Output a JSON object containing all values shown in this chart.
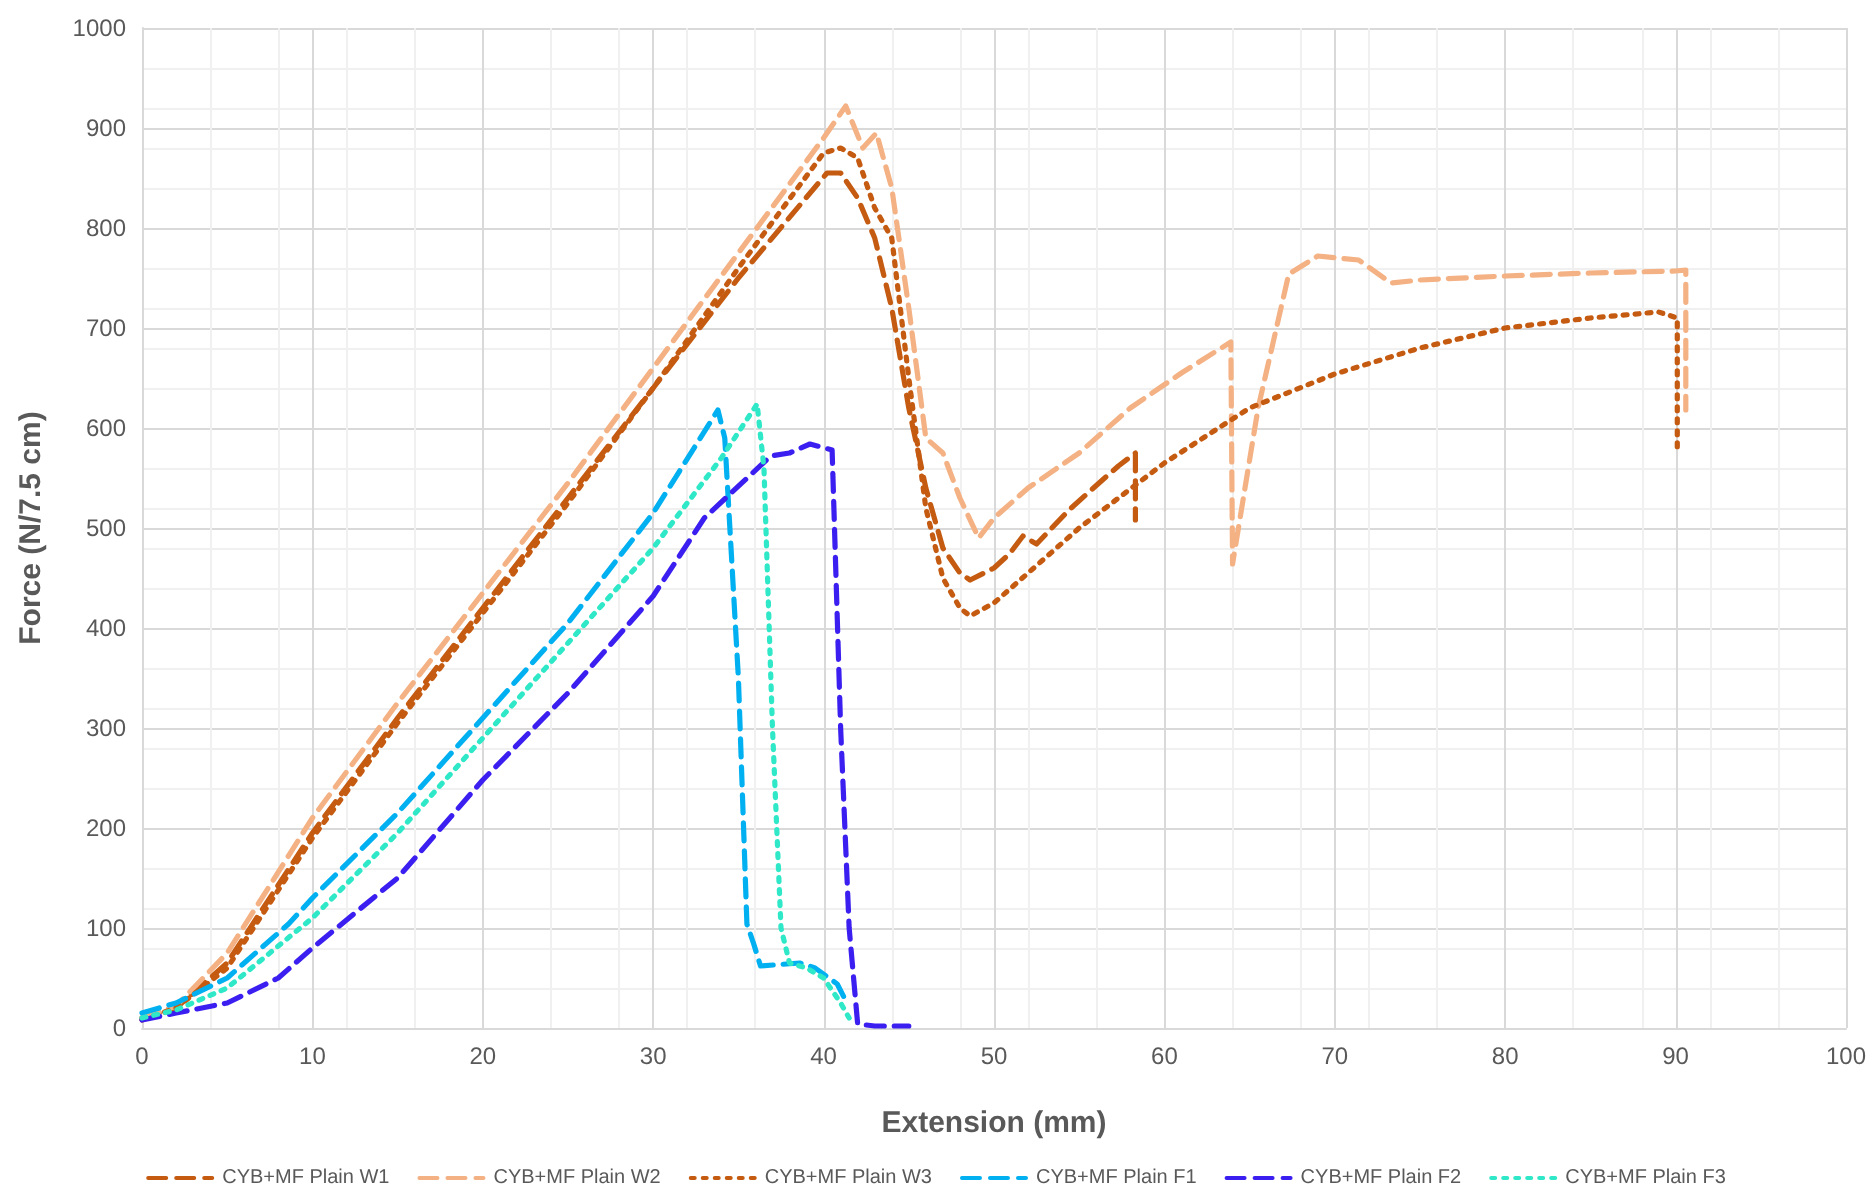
{
  "chart_data": {
    "type": "line",
    "xlabel": "Extension (mm)",
    "ylabel": "Force (N/7.5 cm)",
    "xlim": [
      0,
      100
    ],
    "xticks": [
      0,
      10,
      20,
      30,
      40,
      50,
      60,
      70,
      80,
      90,
      100
    ],
    "ylim": [
      0,
      1000
    ],
    "yticks": [
      0,
      100,
      200,
      300,
      400,
      500,
      600,
      700,
      800,
      900,
      1000
    ],
    "grid": true,
    "legend": "bottom",
    "marker": "none",
    "series": [
      {
        "name": "CYB+MF Plain W1",
        "color": "#c55a11",
        "line_style": "dashed",
        "x": [
          0,
          2,
          5,
          10,
          15,
          20,
          25,
          30,
          35,
          40.2,
          41,
          42,
          43,
          44,
          45,
          46,
          47,
          48,
          48.6,
          50,
          50.9,
          51.7,
          52.5,
          54.4,
          56.1,
          57.3,
          58.3,
          58.3
        ],
        "values": [
          10,
          20,
          65,
          195,
          310,
          420,
          530,
          640,
          750,
          855,
          855,
          830,
          790,
          720,
          620,
          540,
          480,
          455,
          448,
          460,
          474,
          492,
          484,
          518,
          544,
          562,
          575,
          508
        ]
      },
      {
        "name": "CYB+MF Plain W2",
        "color": "#f4b183",
        "line_style": "dashed",
        "x": [
          0,
          2,
          5,
          10,
          15,
          20,
          25,
          30,
          35,
          40,
          41.3,
          42.3,
          43.1,
          44,
          45,
          46,
          47,
          48,
          49.1,
          50,
          52,
          55,
          58,
          61,
          63.9,
          64,
          65.5,
          67.3,
          69,
          71.4,
          73.3,
          75,
          80,
          85,
          90,
          90.6,
          90.6
        ],
        "values": [
          10,
          22,
          75,
          210,
          325,
          435,
          545,
          660,
          775,
          890,
          922,
          880,
          895,
          840,
          720,
          590,
          575,
          530,
          490,
          510,
          540,
          575,
          620,
          655,
          686,
          464,
          620,
          754,
          772,
          768,
          745,
          748,
          752,
          755,
          757,
          758,
          618
        ]
      },
      {
        "name": "CYB+MF Plain W3",
        "color": "#c55a11",
        "line_style": "dotted",
        "x": [
          0,
          2,
          5,
          10,
          15,
          20,
          25,
          30,
          35,
          40,
          41,
          42,
          43,
          44,
          45,
          46,
          47,
          48,
          48.6,
          50,
          55,
          60,
          65,
          70,
          75,
          80,
          85,
          89,
          90.1,
          90.1
        ],
        "values": [
          8,
          20,
          60,
          190,
          305,
          415,
          525,
          640,
          760,
          875,
          880,
          870,
          820,
          790,
          650,
          520,
          450,
          420,
          412,
          425,
          500,
          565,
          620,
          654,
          680,
          700,
          710,
          716,
          710,
          578
        ]
      },
      {
        "name": "CYB+MF Plain F1",
        "color": "#00b0f0",
        "line_style": "dashed",
        "x": [
          0,
          2,
          5,
          8.6,
          10,
          15,
          20,
          25,
          30,
          33.8,
          34.2,
          35,
          35.5,
          35.9,
          36.3,
          38.6,
          39.5,
          40.8,
          41.4
        ],
        "values": [
          15,
          25,
          50,
          104,
          130,
          215,
          310,
          405,
          515,
          618,
          590,
          350,
          104,
          84,
          62,
          65,
          60,
          44,
          24
        ]
      },
      {
        "name": "CYB+MF Plain F2",
        "color": "#3b1ff0",
        "line_style": "dashed",
        "x": [
          0,
          2,
          5,
          8,
          10,
          15,
          20,
          25,
          30,
          33,
          36.9,
          38,
          39.2,
          40.5,
          41,
          41.5,
          42,
          43,
          45
        ],
        "values": [
          8,
          15,
          25,
          50,
          80,
          150,
          248,
          335,
          432,
          510,
          572,
          575,
          584,
          578,
          300,
          100,
          4,
          2,
          2
        ]
      },
      {
        "name": "CYB+MF Plain F3",
        "color": "#2ee8c8",
        "line_style": "dotted",
        "x": [
          0,
          2,
          5,
          10,
          15,
          20,
          25,
          30,
          34,
          36.1,
          36.5,
          37,
          37.5,
          38,
          39,
          40,
          41,
          41.5
        ],
        "values": [
          10,
          18,
          40,
          110,
          195,
          290,
          385,
          480,
          570,
          624,
          560,
          300,
          100,
          65,
          60,
          50,
          25,
          10
        ]
      }
    ]
  }
}
